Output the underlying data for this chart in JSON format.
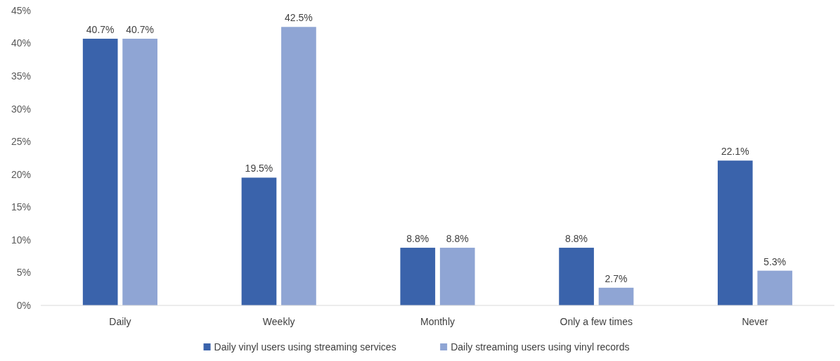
{
  "chart_data": {
    "type": "bar",
    "categories": [
      "Daily",
      "Weekly",
      "Monthly",
      "Only a few times",
      "Never"
    ],
    "series": [
      {
        "name": "Daily vinyl users using streaming services",
        "color": "#3a63ab",
        "values": [
          40.7,
          19.5,
          8.8,
          8.8,
          22.1
        ],
        "value_labels": [
          "40.7%",
          "19.5%",
          "8.8%",
          "8.8%",
          "22.1%"
        ]
      },
      {
        "name": "Daily streaming users using vinyl records",
        "color": "#8fa5d4",
        "values": [
          40.7,
          42.5,
          8.8,
          2.7,
          5.3
        ],
        "value_labels": [
          "40.7%",
          "42.5%",
          "8.8%",
          "2.7%",
          "5.3%"
        ]
      }
    ],
    "ylim": [
      0,
      45
    ],
    "yticks": [
      {
        "value": 0,
        "label": "0%"
      },
      {
        "value": 5,
        "label": "5%"
      },
      {
        "value": 10,
        "label": "10%"
      },
      {
        "value": 15,
        "label": "15%"
      },
      {
        "value": 20,
        "label": "20%"
      },
      {
        "value": 25,
        "label": "25%"
      },
      {
        "value": 30,
        "label": "30%"
      },
      {
        "value": 35,
        "label": "35%"
      },
      {
        "value": 40,
        "label": "40%"
      },
      {
        "value": 45,
        "label": "45%"
      }
    ],
    "legend": "bottom"
  }
}
